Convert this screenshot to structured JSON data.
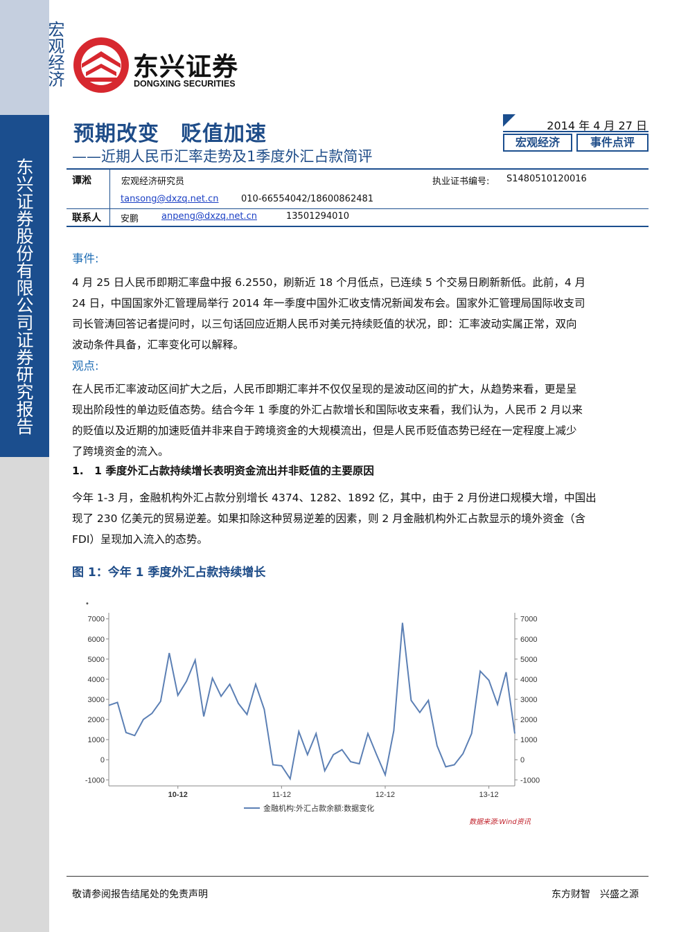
{
  "sidebar": {
    "category": "宏观经济",
    "company": "东兴证券股份有限公司证券研究报告"
  },
  "logo": {
    "name_cn": "东兴证券",
    "name_en": "DONGXING SECURITIES",
    "brand_color": "#d7282f"
  },
  "header": {
    "title": "预期改变　贬值加速",
    "subtitle": "——近期人民币汇率走势及1季度外汇占款简评",
    "date": "2014 年 4 月 27 日",
    "tags": [
      "宏观经济",
      "事件点评"
    ]
  },
  "authors": {
    "analyst_name": "谭淞",
    "analyst_title": "宏观经济研究员",
    "license_label": "执业证书编号:",
    "license_no": "S1480510120016",
    "analyst_email": "tansong@dxzq.net.cn",
    "analyst_phone": "010-66554042/18600862481",
    "contact_label": "联系人",
    "contact_name": "安鹏",
    "contact_email": "anpeng@dxzq.net.cn",
    "contact_phone": "13501294010"
  },
  "content": {
    "event_heading": "事件:",
    "event_lines": [
      "4 月 25 日人民币即期汇率盘中报 6.2550，刷新近 18 个月低点，已连续 5 个交易日刷新新低。此前，4 月",
      "24 日，中国国家外汇管理局举行 2014 年一季度中国外汇收支情况新闻发布会。国家外汇管理局国际收支司",
      "司长管涛回答记者提问时，以三句话回应近期人民币对美元持续贬值的状况，即：汇率波动实属正常，双向",
      "波动条件具备，汇率变化可以解释。"
    ],
    "view_heading": "观点:",
    "view_lines": [
      "在人民币汇率波动区间扩大之后，人民币即期汇率并不仅仅呈现的是波动区间的扩大，从趋势来看，更是呈",
      "现出阶段性的单边贬值态势。结合今年 1 季度的外汇占款增长和国际收支来看，我们认为，人民币 2 月以来",
      "的贬值以及近期的加速贬值并非来自于跨境资金的大规模流出，但是人民币贬值态势已经在一定程度上减少",
      "了跨境资金的流入。"
    ],
    "section1_heading": "1.　1 季度外汇占款持续增长表明资金流出并非贬值的主要原因",
    "section1_lines": [
      "今年 1-3 月，金融机构外汇占款分别增长 4374、1282、1892 亿，其中，由于 2 月份进口规模大增，中国出",
      "现了 230 亿美元的贸易逆差。如果扣除这种贸易逆差的因素，则 2 月金融机构外汇占款显示的境外资金（含",
      "FDI）呈现加入流入的态势。"
    ],
    "figure_title": "图 1：今年 1 季度外汇占款持续增长",
    "source": "数据来源:Wind资讯"
  },
  "chart_data": {
    "type": "line",
    "series": [
      {
        "name": "金融机构:外汇占款余额:数据变化",
        "color": "#5b7fb4",
        "values": [
          2700,
          2850,
          1350,
          1200,
          2000,
          2300,
          2900,
          5300,
          3200,
          3900,
          4950,
          2150,
          4050,
          3150,
          3750,
          2800,
          2250,
          3750,
          2500,
          -250,
          -300,
          -950,
          1400,
          250,
          1300,
          -550,
          250,
          500,
          -100,
          -200,
          1300,
          250,
          -750,
          1450,
          6800,
          2950,
          2350,
          2950,
          700,
          -350,
          -250,
          300,
          1300,
          4400,
          3950,
          2750,
          4350,
          1300
        ]
      }
    ],
    "x_tick_labels": [
      "10-12",
      "11-12",
      "12-12",
      "13-12"
    ],
    "x_tick_index": [
      8,
      20,
      32,
      44
    ],
    "y_left_ticks": [
      -1000,
      0,
      1000,
      2000,
      3000,
      4000,
      5000,
      6000,
      7000
    ],
    "y_right_ticks": [
      -1000,
      0,
      1000,
      2000,
      3000,
      4000,
      5000,
      6000,
      7000
    ],
    "ylim": [
      -1300,
      7300
    ],
    "legend_position": "bottom"
  },
  "footer": {
    "disclaimer": "敬请参阅报告结尾处的免责声明",
    "slogan": "东方财智　兴盛之源"
  }
}
